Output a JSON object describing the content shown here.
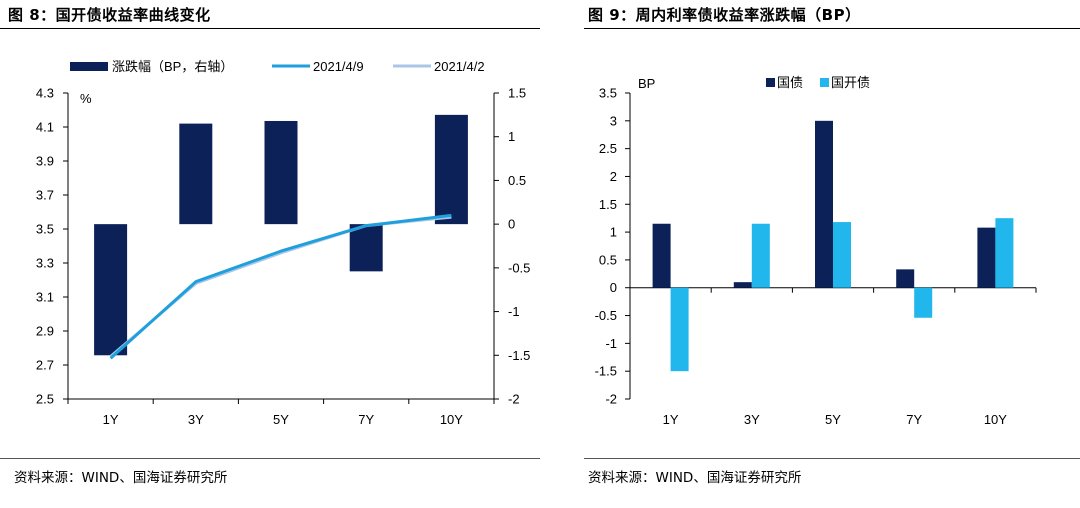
{
  "colors": {
    "navy": "#0b2158",
    "cyan": "#21b6ec",
    "line_blue": "#1f9fdc",
    "line_light": "#a9c6e6"
  },
  "left": {
    "title": "图 8：国开债收益率曲线变化",
    "source": "资料来源：WIND、国海证券研究所",
    "chart_data": {
      "type": "bar+line",
      "categories": [
        "1Y",
        "3Y",
        "5Y",
        "7Y",
        "10Y"
      ],
      "bar_series": {
        "name": "涨跌幅（BP，右轴）",
        "values": [
          -1.5,
          1.15,
          1.18,
          -0.54,
          1.25
        ],
        "axis": "right"
      },
      "line_series": [
        {
          "name": "2021/4/9",
          "values": [
            2.74,
            3.19,
            3.37,
            3.52,
            3.58
          ]
        },
        {
          "name": "2021/4/2",
          "values": [
            2.75,
            3.18,
            3.36,
            3.52,
            3.57
          ]
        }
      ],
      "y_left": {
        "label": "%",
        "range": [
          2.5,
          4.3
        ],
        "ticks": [
          "4.3",
          "4.1",
          "3.9",
          "3.7",
          "3.5",
          "3.3",
          "3.1",
          "2.9",
          "2.7",
          "2.5"
        ]
      },
      "y_right": {
        "range": [
          -2,
          1.5
        ],
        "ticks": [
          "1.5",
          "1",
          "0.5",
          "0",
          "-0.5",
          "-1",
          "-1.5",
          "-2"
        ]
      },
      "legend_position": "top"
    }
  },
  "right": {
    "title": "图 9：周内利率债收益率涨跌幅（BP）",
    "source": "资料来源：WIND、国海证券研究所",
    "chart_data": {
      "type": "bar",
      "categories": [
        "1Y",
        "3Y",
        "5Y",
        "7Y",
        "10Y"
      ],
      "series": [
        {
          "name": "国债",
          "values": [
            1.15,
            0.1,
            3.0,
            0.33,
            1.08
          ]
        },
        {
          "name": "国开债",
          "values": [
            -1.5,
            1.15,
            1.18,
            -0.54,
            1.25
          ]
        }
      ],
      "ylabel": "BP",
      "ylim": [
        -2,
        3.5
      ],
      "ticks": [
        "3.5",
        "3",
        "2.5",
        "2",
        "1.5",
        "1",
        "0.5",
        "0",
        "-0.5",
        "-1",
        "-1.5",
        "-2"
      ],
      "legend_position": "top"
    }
  }
}
